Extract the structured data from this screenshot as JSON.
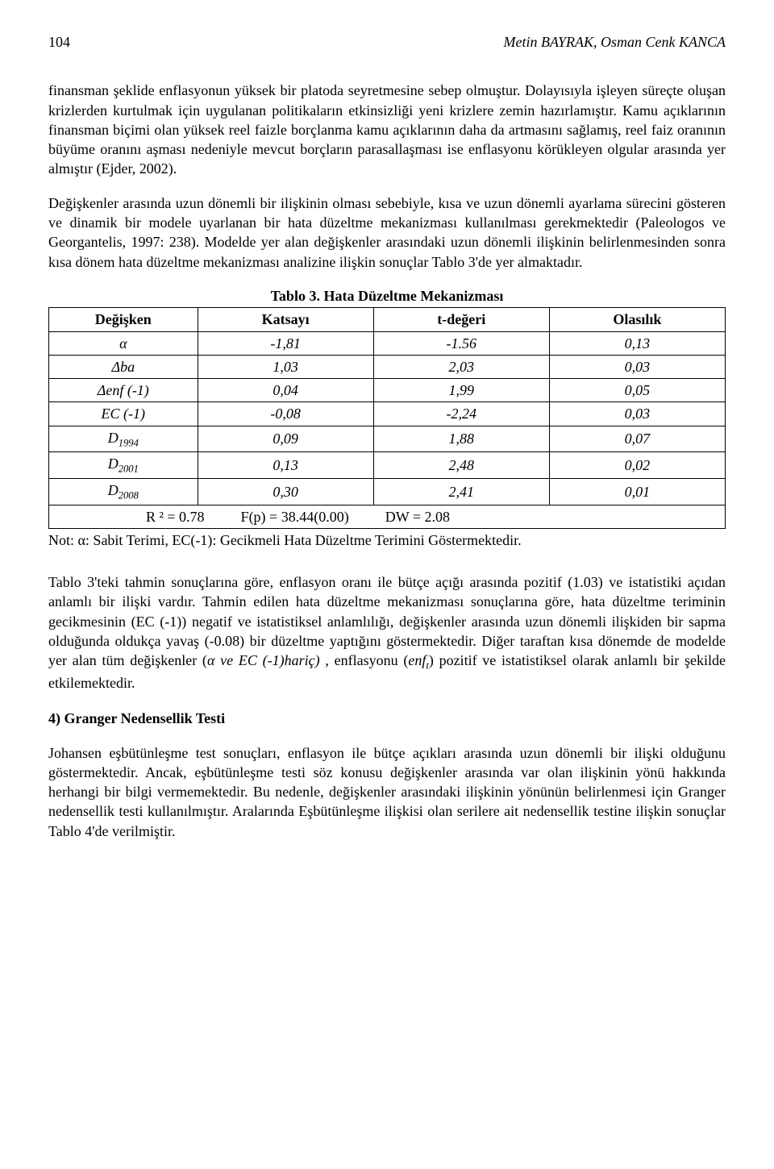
{
  "header": {
    "page_number": "104",
    "authors": "Metin BAYRAK, Osman Cenk KANCA"
  },
  "paragraphs": {
    "p1": "finansman şeklide enflasyonun yüksek bir platoda seyretmesine sebep olmuştur. Dolayısıyla işleyen süreçte oluşan krizlerden kurtulmak için uygulanan politikaların etkinsizliği yeni krizlere zemin hazırlamıştır. Kamu açıklarının finansman biçimi olan yüksek reel faizle borçlanma kamu açıklarının daha da artmasını sağlamış, reel faiz oranının büyüme oranını aşması nedeniyle mevcut borçların parasallaşması ise enflasyonu körükleyen olgular arasında yer almıştır (Ejder, 2002).",
    "p2": "Değişkenler arasında uzun dönemli bir ilişkinin olması sebebiyle, kısa ve uzun dönemli ayarlama sürecini gösteren ve dinamik bir modele uyarlanan bir hata düzeltme mekanizması kullanılması gerekmektedir (Paleologos ve Georgantelis, 1997: 238). Modelde yer alan değişkenler arasındaki uzun dönemli ilişkinin belirlenmesinden sonra kısa dönem hata düzeltme mekanizması analizine ilişkin sonuçlar Tablo 3'de yer almaktadır.",
    "p3_a": "Tablo 3'teki tahmin sonuçlarına göre, enflasyon oranı ile bütçe açığı arasında pozitif (1.03) ve istatistiki açıdan anlamlı bir ilişki vardır. Tahmin edilen hata düzeltme mekanizması sonuçlarına göre, hata düzeltme teriminin gecikmesinin (EC (-1)) negatif ve istatistiksel anlamlılığı, değişkenler arasında uzun dönemli ilişkiden bir sapma olduğunda oldukça yavaş (-0.08) bir düzeltme yaptığını göstermektedir. Diğer taraftan kısa dönemde de modelde yer alan tüm değişkenler (",
    "p3_italic1": "α ve EC (-1)hariç)",
    "p3_b": " , enflasyonu (",
    "p3_italic2": "enf",
    "p3_sub": "t",
    "p3_c": ") pozitif ve istatistiksel olarak anlamlı bir şekilde etkilemektedir.",
    "p4": "Johansen eşbütünleşme test sonuçları, enflasyon ile bütçe açıkları arasında uzun dönemli bir ilişki olduğunu göstermektedir. Ancak, eşbütünleşme testi söz konusu değişkenler arasında var olan ilişkinin yönü hakkında herhangi bir bilgi vermemektedir. Bu nedenle, değişkenler arasındaki ilişkinin yönünün belirlenmesi için Granger nedensellik testi kullanılmıştır. Aralarında Eşbütünleşme ilişkisi olan serilere ait nedensellik testine ilişkin sonuçlar Tablo 4'de verilmiştir."
  },
  "table": {
    "caption": "Tablo 3. Hata Düzeltme Mekanizması",
    "headers": [
      "Değişken",
      "Katsayı",
      "t-değeri",
      "Olasılık"
    ],
    "rows": [
      {
        "var_html": "α",
        "coef": "-1,81",
        "t": "-1.56",
        "p": "0,13"
      },
      {
        "var_html": "Δba",
        "coef": "1,03",
        "t": "2,03",
        "p": "0,03"
      },
      {
        "var_html": "Δenf (-1)",
        "coef": "0,04",
        "t": "1,99",
        "p": "0,05"
      },
      {
        "var_html": "EC (-1)",
        "coef": "-0,08",
        "t": "-2,24",
        "p": "0,03"
      },
      {
        "var_html": "D<sub>1994</sub>",
        "coef": "0,09",
        "t": "1,88",
        "p": "0,07"
      },
      {
        "var_html": "D<sub>2001</sub>",
        "coef": "0,13",
        "t": "2,48",
        "p": "0,02"
      },
      {
        "var_html": "D<sub>2008</sub>",
        "coef": "0,30",
        "t": "2,41",
        "p": "0,01"
      }
    ],
    "footer": "R ² = 0.78          F(p) = 38.44(0.00)          DW = 2.08",
    "note": "Not: α: Sabit Terimi, EC(-1): Gecikmeli Hata Düzeltme Terimini Göstermektedir."
  },
  "section_heading": "4) Granger Nedensellik Testi"
}
